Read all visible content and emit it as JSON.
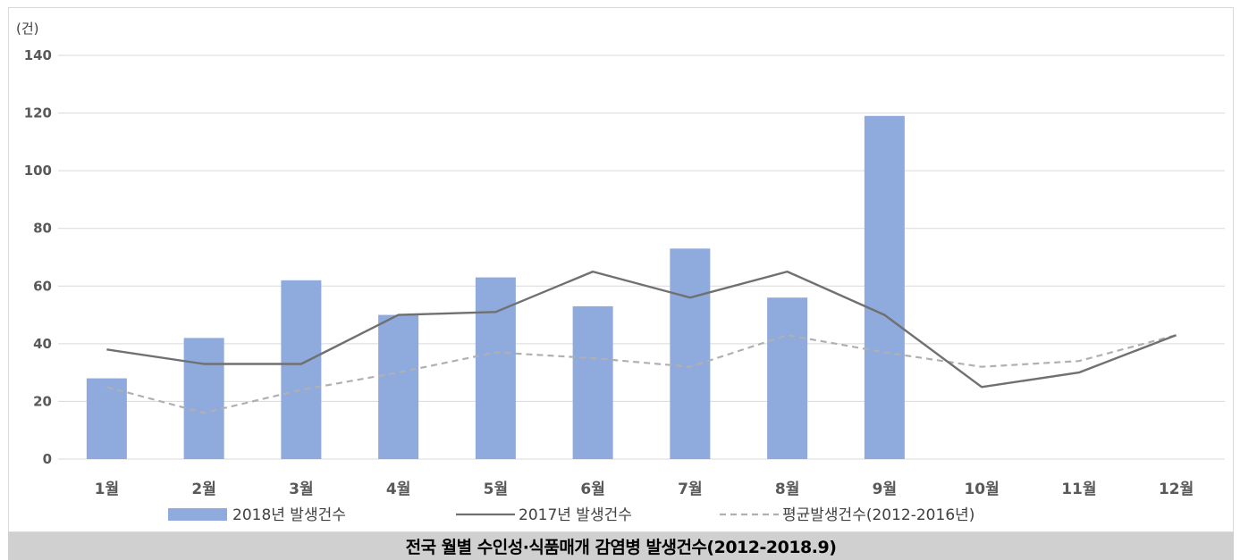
{
  "chart_data": {
    "type": "bar",
    "title": "",
    "unit_label": "(건)",
    "categories": [
      "1월",
      "2월",
      "3월",
      "4월",
      "5월",
      "6월",
      "7월",
      "8월",
      "9월",
      "10월",
      "11월",
      "12월"
    ],
    "ylim": [
      0,
      140
    ],
    "yticks": [
      0,
      20,
      40,
      60,
      80,
      100,
      120,
      140
    ],
    "grid": true,
    "legend_position": "bottom",
    "series": [
      {
        "name": "2018년 발생건수",
        "type": "bar",
        "color": "#8faadc",
        "values": [
          28,
          42,
          62,
          50,
          63,
          53,
          73,
          56,
          119,
          null,
          null,
          null
        ]
      },
      {
        "name": "2017년 발생건수",
        "type": "line",
        "color": "#707070",
        "style": "solid",
        "values": [
          38,
          33,
          33,
          50,
          51,
          65,
          56,
          65,
          50,
          25,
          30,
          43
        ]
      },
      {
        "name": "평균발생건수(2012-2016년)",
        "type": "line",
        "color": "#b0b0b0",
        "style": "dashed",
        "values": [
          25,
          16,
          24,
          30,
          37,
          35,
          32,
          43,
          37,
          32,
          34,
          43
        ]
      }
    ]
  },
  "caption": "전국 월별 수인성·식품매개 감염병 발생건수(2012-2018.9)"
}
